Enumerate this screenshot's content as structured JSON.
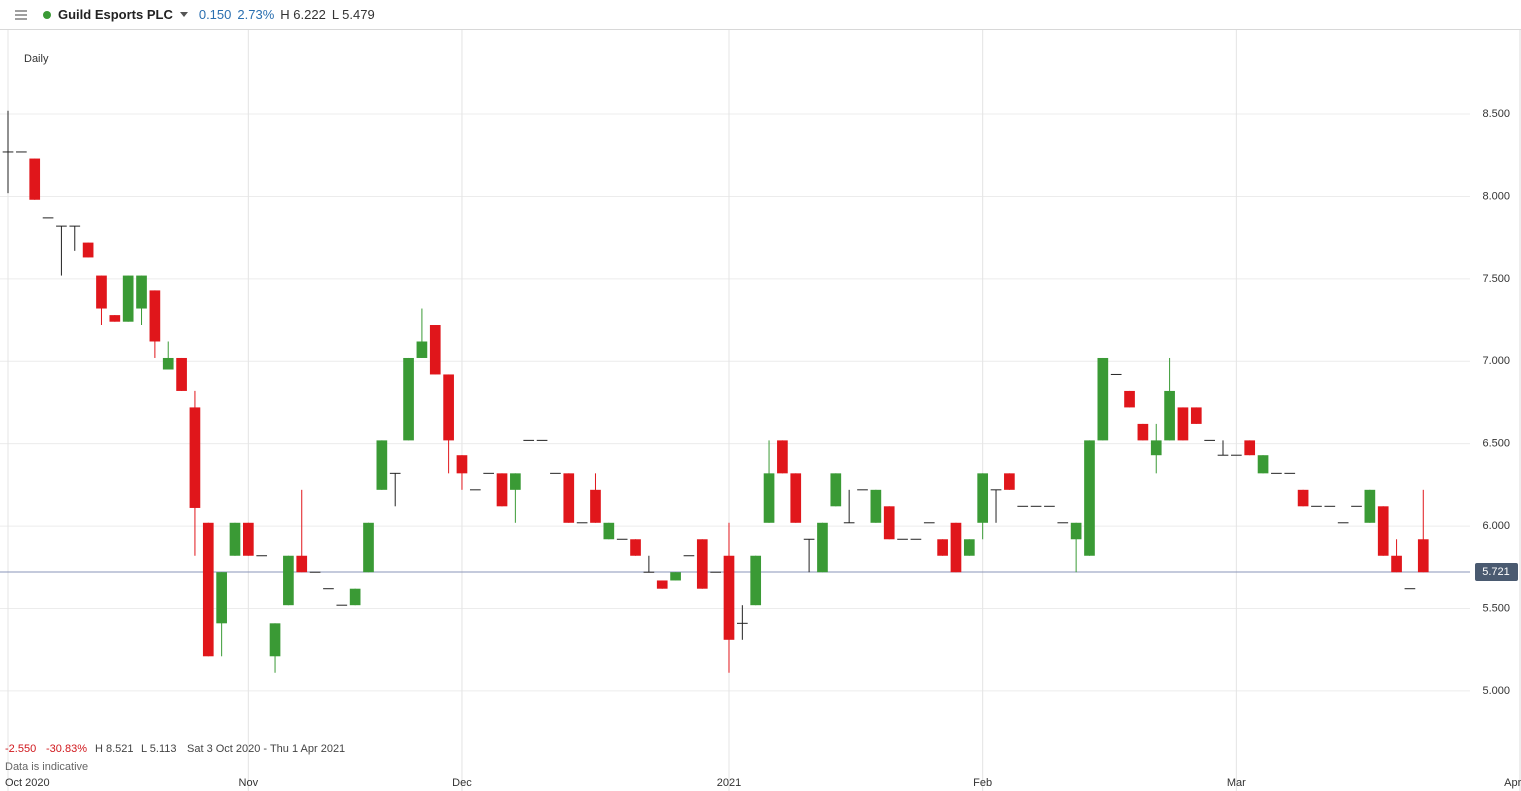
{
  "header": {
    "name": "Guild Esports PLC",
    "change": "0.150",
    "change_pct": "2.73%",
    "high": "H 6.222",
    "low": "L 5.479"
  },
  "chart_data": {
    "type": "candlestick",
    "interval": "Daily",
    "up_color": "#3a9a35",
    "down_color": "#e0161b",
    "flat_color": "#222222",
    "open": [
      8.27,
      8.27,
      8.23,
      7.87,
      7.82,
      7.82,
      7.72,
      7.52,
      7.28,
      7.24,
      7.32,
      7.43,
      6.95,
      7.02,
      6.72,
      6.02,
      5.41,
      5.82,
      6.02,
      5.82,
      5.21,
      5.52,
      5.82,
      5.72,
      5.62,
      5.52,
      5.52,
      5.72,
      6.22,
      6.32,
      6.52,
      7.02,
      7.22,
      6.92,
      6.43,
      6.22,
      6.32,
      6.32,
      6.22,
      6.52,
      6.52,
      6.32,
      6.32,
      6.02,
      6.22,
      5.92,
      5.92,
      5.92,
      5.72,
      5.67,
      5.67,
      5.82,
      5.92,
      5.72,
      5.82,
      5.41,
      5.52,
      6.02,
      6.52,
      6.32,
      5.92,
      5.72,
      6.12,
      6.02,
      6.22,
      6.02,
      6.12,
      5.92,
      5.92,
      6.02,
      5.92,
      6.02,
      5.82,
      6.02,
      6.22,
      6.32,
      6.12,
      6.12,
      6.12,
      6.02,
      5.92,
      5.82,
      6.52,
      6.92,
      6.82,
      6.62,
      6.43,
      6.52,
      6.72,
      6.72,
      6.52,
      6.43,
      6.43,
      6.52,
      6.32,
      6.32,
      6.32,
      6.22,
      6.12,
      6.12,
      6.02,
      6.12,
      6.02,
      6.12,
      5.82,
      5.62,
      5.92
    ],
    "high": [
      8.52,
      8.27,
      8.23,
      7.87,
      7.82,
      7.82,
      7.72,
      7.52,
      7.28,
      7.52,
      7.52,
      7.43,
      7.12,
      7.02,
      6.82,
      6.02,
      5.72,
      6.02,
      6.02,
      5.82,
      5.41,
      5.82,
      6.22,
      5.72,
      5.62,
      5.52,
      5.62,
      6.02,
      6.52,
      6.32,
      7.02,
      7.32,
      7.22,
      6.92,
      6.43,
      6.22,
      6.32,
      6.32,
      6.32,
      6.52,
      6.52,
      6.32,
      6.32,
      6.02,
      6.32,
      6.02,
      5.92,
      5.92,
      5.82,
      5.67,
      5.72,
      5.82,
      5.92,
      5.72,
      6.02,
      5.52,
      5.82,
      6.52,
      6.52,
      6.32,
      5.92,
      6.02,
      6.32,
      6.22,
      6.22,
      6.22,
      6.12,
      5.92,
      5.92,
      6.02,
      5.92,
      6.02,
      5.92,
      6.32,
      6.22,
      6.32,
      6.12,
      6.12,
      6.12,
      6.02,
      6.02,
      6.52,
      7.02,
      6.92,
      6.82,
      6.62,
      6.62,
      7.02,
      6.72,
      6.72,
      6.52,
      6.52,
      6.43,
      6.52,
      6.43,
      6.32,
      6.32,
      6.22,
      6.12,
      6.12,
      6.02,
      6.12,
      6.22,
      6.12,
      5.92,
      5.62,
      6.22
    ],
    "low": [
      8.02,
      8.27,
      7.98,
      7.87,
      7.52,
      7.67,
      7.63,
      7.22,
      7.24,
      7.24,
      7.22,
      7.02,
      6.95,
      6.82,
      5.82,
      5.21,
      5.21,
      5.82,
      5.82,
      5.82,
      5.11,
      5.52,
      5.72,
      5.72,
      5.62,
      5.52,
      5.52,
      5.72,
      6.22,
      6.12,
      6.52,
      7.02,
      6.92,
      6.32,
      6.22,
      6.22,
      6.32,
      6.12,
      6.02,
      6.52,
      6.52,
      6.32,
      6.02,
      6.02,
      6.02,
      5.92,
      5.92,
      5.82,
      5.72,
      5.62,
      5.67,
      5.82,
      5.62,
      5.72,
      5.11,
      5.31,
      5.52,
      6.02,
      6.32,
      6.02,
      5.72,
      5.72,
      6.12,
      6.02,
      6.22,
      6.02,
      5.92,
      5.92,
      5.92,
      6.02,
      5.82,
      5.72,
      5.82,
      5.92,
      6.02,
      6.22,
      6.12,
      6.12,
      6.12,
      6.02,
      5.72,
      5.82,
      6.52,
      6.92,
      6.72,
      6.52,
      6.32,
      6.52,
      6.52,
      6.62,
      6.52,
      6.43,
      6.43,
      6.43,
      6.32,
      6.32,
      6.32,
      6.12,
      6.12,
      6.12,
      6.02,
      6.12,
      6.02,
      5.82,
      5.72,
      5.62,
      5.72
    ],
    "close": [
      8.27,
      8.27,
      7.98,
      7.87,
      7.82,
      7.82,
      7.63,
      7.32,
      7.24,
      7.52,
      7.52,
      7.12,
      7.02,
      6.82,
      6.11,
      5.21,
      5.72,
      6.02,
      5.82,
      5.82,
      5.41,
      5.82,
      5.72,
      5.72,
      5.62,
      5.52,
      5.62,
      6.02,
      6.52,
      6.32,
      7.02,
      7.12,
      6.92,
      6.52,
      6.32,
      6.22,
      6.32,
      6.12,
      6.32,
      6.52,
      6.52,
      6.32,
      6.02,
      6.02,
      6.02,
      6.02,
      5.92,
      5.82,
      5.72,
      5.62,
      5.72,
      5.82,
      5.62,
      5.72,
      5.31,
      5.41,
      5.82,
      6.32,
      6.32,
      6.02,
      5.92,
      6.02,
      6.32,
      6.02,
      6.22,
      6.22,
      5.92,
      5.92,
      5.92,
      6.02,
      5.82,
      5.72,
      5.92,
      6.32,
      6.22,
      6.22,
      6.12,
      6.12,
      6.12,
      6.02,
      6.02,
      6.52,
      7.02,
      6.92,
      6.72,
      6.52,
      6.52,
      6.82,
      6.52,
      6.62,
      6.52,
      6.43,
      6.43,
      6.43,
      6.43,
      6.32,
      6.32,
      6.12,
      6.12,
      6.12,
      6.02,
      6.12,
      6.22,
      5.82,
      5.72,
      5.62,
      5.72
    ],
    "xlim": [
      -0.6,
      109.5
    ],
    "xticks": [
      {
        "value": 0,
        "label": "Oct 2020"
      },
      {
        "value": 18,
        "label": "Nov"
      },
      {
        "value": 34,
        "label": "Dec"
      },
      {
        "value": 54,
        "label": "2021"
      },
      {
        "value": 73,
        "label": "Feb"
      },
      {
        "value": 92,
        "label": "Mar"
      },
      {
        "value": 112.7,
        "label": "Apr"
      }
    ],
    "ylim": [
      4.52,
      9.01
    ],
    "yticks": [
      {
        "value": 5,
        "label": "5.000"
      },
      {
        "value": 5.5,
        "label": "5.500"
      },
      {
        "value": 6,
        "label": "6.000"
      },
      {
        "value": 6.5,
        "label": "6.500"
      },
      {
        "value": 7,
        "label": "7.000"
      },
      {
        "value": 7.5,
        "label": "7.500"
      },
      {
        "value": 8,
        "label": "8.000"
      },
      {
        "value": 8.5,
        "label": "8.500"
      }
    ],
    "grid": true,
    "last": {
      "value": 5.721,
      "label": "5.721"
    },
    "stats": {
      "change": "-2.550",
      "change_pct": "-30.83%",
      "high": "H 8.521",
      "low": "L 5.113",
      "range": "Sat 3 Oct 2020 - Thu 1 Apr 2021",
      "note": "Data is indicative"
    }
  }
}
